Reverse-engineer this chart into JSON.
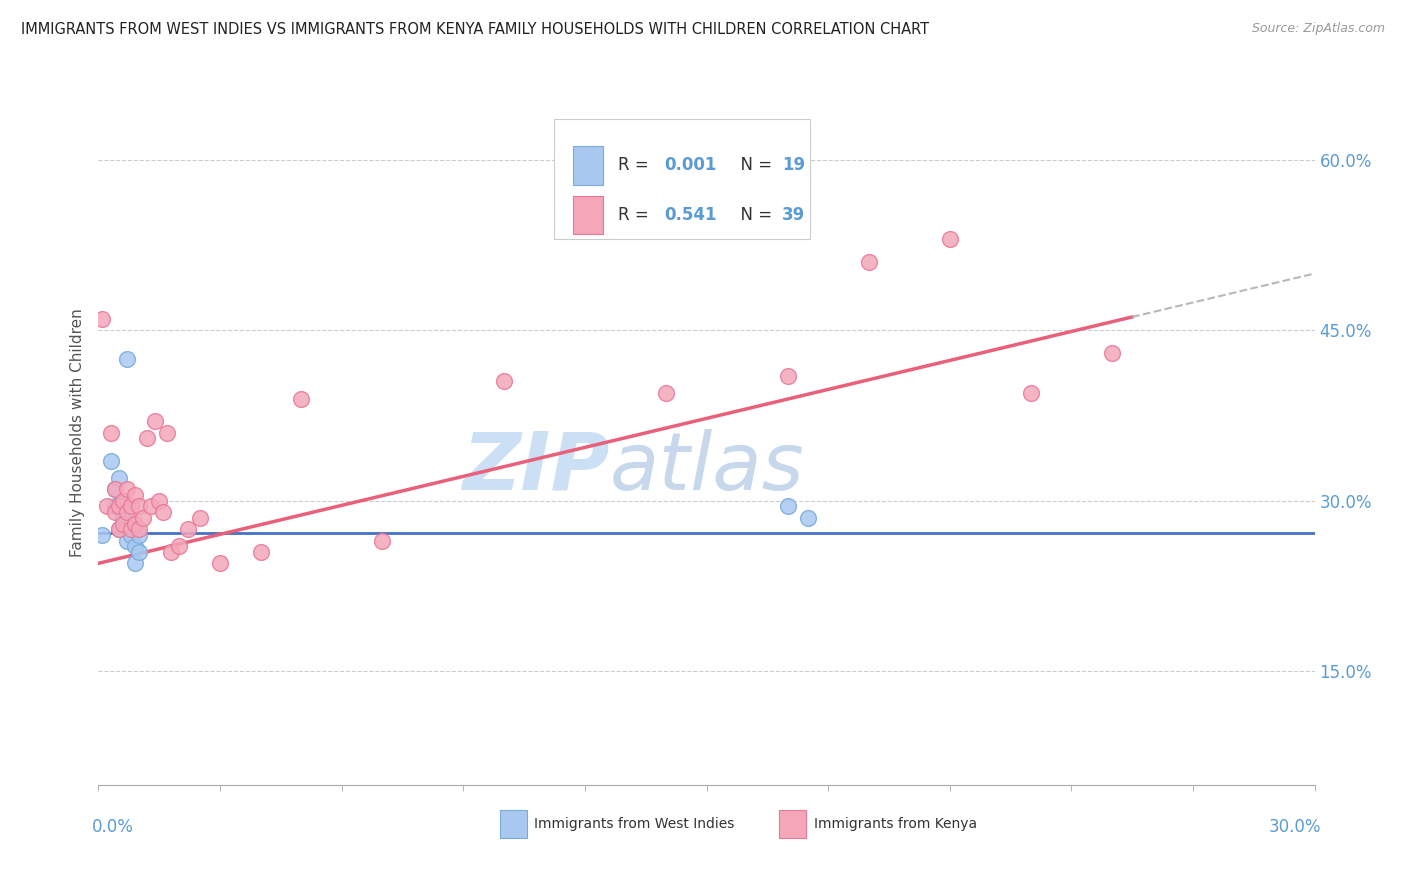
{
  "title": "IMMIGRANTS FROM WEST INDIES VS IMMIGRANTS FROM KENYA FAMILY HOUSEHOLDS WITH CHILDREN CORRELATION CHART",
  "source": "Source: ZipAtlas.com",
  "ylabel": "Family Households with Children",
  "ylabel_ticks": [
    "15.0%",
    "30.0%",
    "45.0%",
    "60.0%"
  ],
  "ylabel_tick_vals": [
    0.15,
    0.3,
    0.45,
    0.6
  ],
  "xmin": 0.0,
  "xmax": 0.3,
  "ymin": 0.05,
  "ymax": 0.67,
  "R_west_indies": 0.001,
  "N_west_indies": 19,
  "R_kenya": 0.541,
  "N_kenya": 39,
  "color_west_indies": "#a8c8f0",
  "color_kenya": "#f4a7b9",
  "color_west_indies_edge": "#7aaad8",
  "color_kenya_edge": "#e87898",
  "color_trend_west_indies": "#4472c4",
  "color_trend_kenya": "#e8607a",
  "color_trend_ext": "#b8b8b8",
  "watermark_zip_color": "#cce0f5",
  "watermark_atlas_color": "#c8d8ec",
  "west_indies_x": [
    0.001,
    0.003,
    0.004,
    0.004,
    0.005,
    0.005,
    0.006,
    0.006,
    0.007,
    0.007,
    0.007,
    0.008,
    0.008,
    0.009,
    0.009,
    0.01,
    0.01,
    0.17,
    0.175
  ],
  "west_indies_y": [
    0.27,
    0.335,
    0.31,
    0.295,
    0.32,
    0.275,
    0.3,
    0.285,
    0.425,
    0.295,
    0.265,
    0.28,
    0.27,
    0.26,
    0.245,
    0.27,
    0.255,
    0.295,
    0.285
  ],
  "kenya_x": [
    0.001,
    0.002,
    0.003,
    0.004,
    0.004,
    0.005,
    0.005,
    0.006,
    0.006,
    0.007,
    0.007,
    0.008,
    0.008,
    0.009,
    0.009,
    0.01,
    0.01,
    0.011,
    0.012,
    0.013,
    0.014,
    0.015,
    0.016,
    0.017,
    0.018,
    0.02,
    0.022,
    0.025,
    0.03,
    0.04,
    0.05,
    0.07,
    0.1,
    0.14,
    0.17,
    0.19,
    0.21,
    0.23,
    0.25
  ],
  "kenya_y": [
    0.46,
    0.295,
    0.36,
    0.31,
    0.29,
    0.295,
    0.275,
    0.3,
    0.28,
    0.31,
    0.29,
    0.295,
    0.275,
    0.305,
    0.28,
    0.295,
    0.275,
    0.285,
    0.355,
    0.295,
    0.37,
    0.3,
    0.29,
    0.36,
    0.255,
    0.26,
    0.275,
    0.285,
    0.245,
    0.255,
    0.39,
    0.265,
    0.405,
    0.395,
    0.41,
    0.51,
    0.53,
    0.395,
    0.43
  ],
  "trend_wi_slope": 0.0,
  "trend_wi_intercept": 0.272,
  "trend_k_slope": 0.85,
  "trend_k_intercept": 0.245,
  "trend_k_solid_end": 0.255,
  "trend_k_dash_end": 0.3
}
